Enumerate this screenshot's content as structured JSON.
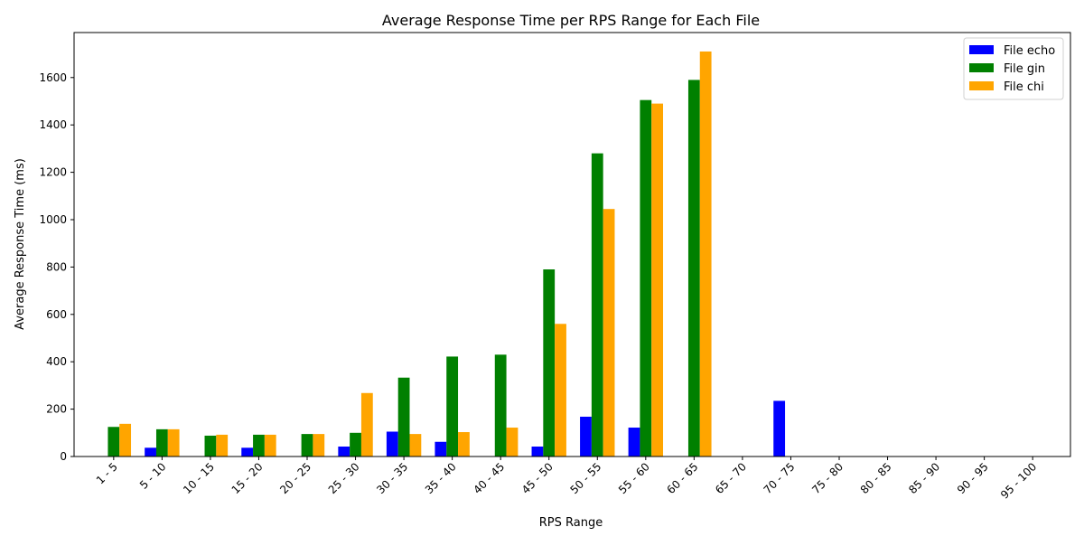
{
  "chart_data": {
    "type": "bar",
    "title": "Average Response Time per RPS Range for Each File",
    "xlabel": "RPS Range",
    "ylabel": "Average Response Time (ms)",
    "ylim": [
      0,
      1790
    ],
    "yticks": [
      0,
      200,
      400,
      600,
      800,
      1000,
      1200,
      1400,
      1600
    ],
    "grid": false,
    "legend_position": "top-right",
    "categories": [
      "1 - 5",
      "5 - 10",
      "10 - 15",
      "15 - 20",
      "20 - 25",
      "25 - 30",
      "30 - 35",
      "35 - 40",
      "40 - 45",
      "45 - 50",
      "50 - 55",
      "55 - 60",
      "60 - 65",
      "65 - 70",
      "70 - 75",
      "75 - 80",
      "80 - 85",
      "85 - 90",
      "90 - 95",
      "95 - 100"
    ],
    "series": [
      {
        "name": "File echo",
        "color": "#0000ff",
        "values": [
          0,
          37,
          0,
          37,
          0,
          42,
          105,
          62,
          0,
          42,
          168,
          122,
          0,
          0,
          235,
          0,
          0,
          0,
          0,
          0
        ]
      },
      {
        "name": "File gin",
        "color": "#008000",
        "values": [
          125,
          115,
          88,
          92,
          95,
          100,
          333,
          422,
          430,
          790,
          1280,
          1505,
          1590,
          0,
          0,
          0,
          0,
          0,
          0,
          0
        ]
      },
      {
        "name": "File chi",
        "color": "#ffa500",
        "values": [
          138,
          115,
          92,
          92,
          95,
          268,
          95,
          103,
          122,
          560,
          1045,
          1490,
          1710,
          0,
          0,
          0,
          0,
          0,
          0,
          0
        ]
      }
    ]
  }
}
